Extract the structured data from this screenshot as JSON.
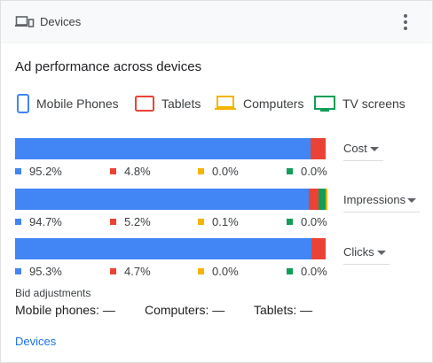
{
  "header": {
    "title": "Devices",
    "icon": "devices-icon"
  },
  "section_title": "Ad performance across devices",
  "legend": [
    {
      "label": "Mobile Phones",
      "color": "#4285f4",
      "icon": "mobile-phone-icon"
    },
    {
      "label": "Tablets",
      "color": "#ea4335",
      "icon": "tablet-icon"
    },
    {
      "label": "Computers",
      "color": "#f4b400",
      "icon": "computer-icon"
    },
    {
      "label": "TV screens",
      "color": "#0f9d58",
      "icon": "tv-screen-icon"
    }
  ],
  "colors": {
    "mobile": "#4285f4",
    "tablet": "#ea4335",
    "computer": "#f4b400",
    "tv": "#0f9d58",
    "link": "#1a73e8"
  },
  "metrics": [
    {
      "dropdown_label": "Cost",
      "shares": [
        95.2,
        4.8,
        0.0,
        0.0
      ],
      "labels": [
        "95.2%",
        "4.8%",
        "0.0%",
        "0.0%"
      ]
    },
    {
      "dropdown_label": "Impressions",
      "shares": [
        94.7,
        5.2,
        0.1,
        0.0
      ],
      "labels": [
        "94.7%",
        "5.2%",
        "0.1%",
        "0.0%"
      ]
    },
    {
      "dropdown_label": "Clicks",
      "shares": [
        95.3,
        4.7,
        0.0,
        0.0
      ],
      "labels": [
        "95.3%",
        "4.7%",
        "0.0%",
        "0.0%"
      ]
    }
  ],
  "bid_adjustments": {
    "title": "Bid adjustments",
    "mobile": "Mobile phones: —",
    "computers": "Computers: —",
    "tablets": "Tablets: —"
  },
  "footer_link": "Devices"
}
